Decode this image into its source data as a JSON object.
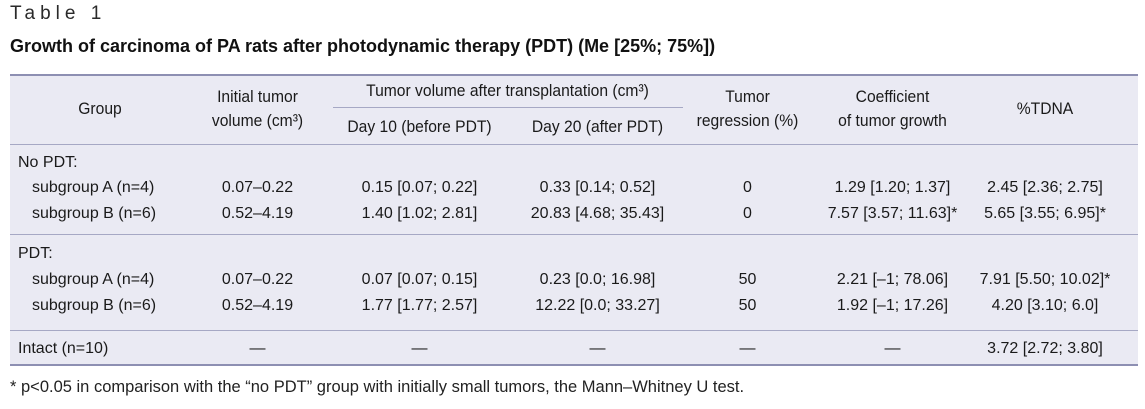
{
  "label": "Table 1",
  "title": "Growth of carcinoma of PA rats after photodynamic therapy (PDT) (Me [25%; 75%])",
  "headers": {
    "group": "Group",
    "initial": [
      "Initial tumor",
      "volume (cm³)"
    ],
    "after_group": "Tumor volume after transplantation (cm³)",
    "day10": "Day 10 (before PDT)",
    "day20": "Day 20 (after PDT)",
    "regression": [
      "Tumor",
      "regression (%)"
    ],
    "coefficient": [
      "Coefficient",
      "of tumor growth"
    ],
    "tdna": "%TDNA"
  },
  "sections": [
    {
      "title": "No PDT:",
      "rows": [
        {
          "group": "subgroup A (n=4)",
          "initial": "0.07–0.22",
          "day10": "0.15 [0.07; 0.22]",
          "day20": "0.33 [0.14; 0.52]",
          "regression": "0",
          "coefficient": "1.29 [1.20; 1.37]",
          "tdna": "2.45 [2.36; 2.75]"
        },
        {
          "group": "subgroup B (n=6)",
          "initial": "0.52–4.19",
          "day10": "1.40 [1.02; 2.81]",
          "day20": "20.83 [4.68; 35.43]",
          "regression": "0",
          "coefficient": "7.57 [3.57; 11.63]*",
          "tdna": "5.65 [3.55; 6.95]*"
        }
      ]
    },
    {
      "title": "PDT:",
      "rows": [
        {
          "group": "subgroup A (n=4)",
          "initial": "0.07–0.22",
          "day10": "0.07 [0.07; 0.15]",
          "day20": "0.23 [0.0; 16.98]",
          "regression": "50",
          "coefficient": "2.21 [–1; 78.06]",
          "tdna": "7.91 [5.50; 10.02]*"
        },
        {
          "group": "subgroup B (n=6)",
          "initial": "0.52–4.19",
          "day10": "1.77 [1.77; 2.57]",
          "day20": "12.22 [0.0; 33.27]",
          "regression": "50",
          "coefficient": "1.92 [–1; 17.26]",
          "tdna": "4.20 [3.10; 6.0]"
        }
      ]
    }
  ],
  "intact": {
    "group": "Intact (n=10)",
    "initial": "—",
    "day10": "—",
    "day20": "—",
    "regression": "—",
    "coefficient": "—",
    "tdna": "3.72 [2.72; 3.80]"
  },
  "footnote": "* p<0.05 in comparison with the “no PDT” group with initially small tumors, the Mann–Whitney U test."
}
